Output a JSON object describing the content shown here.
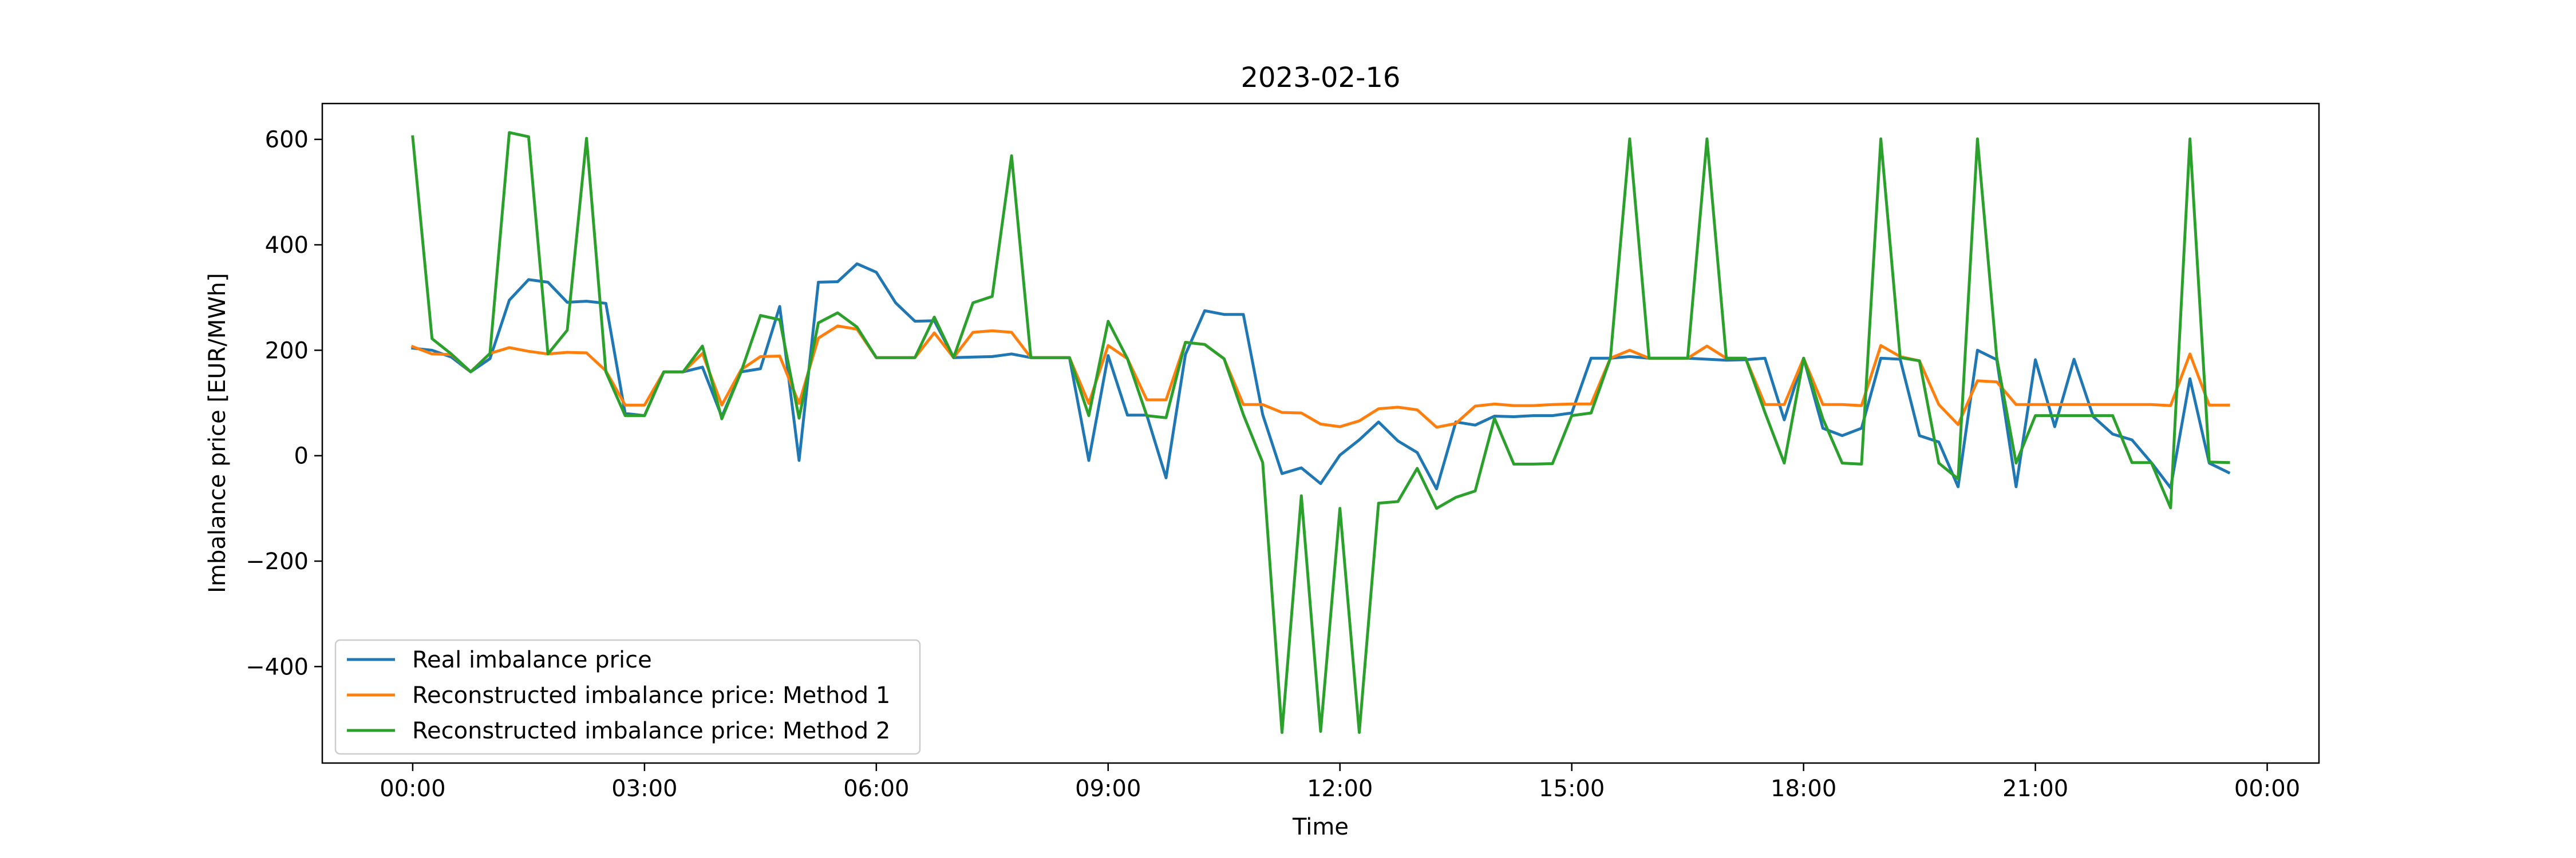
{
  "chart_data": {
    "type": "line",
    "title": "2023-02-16",
    "xlabel": "Time",
    "ylabel": "Imbalance price [EUR/MWh]",
    "x_start": "00:00",
    "x_step_minutes": 15,
    "xlim_hours": [
      -1.17,
      24.67
    ],
    "ylim": [
      -583,
      668
    ],
    "xticks": [
      {
        "hour": 0,
        "label": "00:00"
      },
      {
        "hour": 3,
        "label": "03:00"
      },
      {
        "hour": 6,
        "label": "06:00"
      },
      {
        "hour": 9,
        "label": "09:00"
      },
      {
        "hour": 12,
        "label": "12:00"
      },
      {
        "hour": 15,
        "label": "15:00"
      },
      {
        "hour": 18,
        "label": "18:00"
      },
      {
        "hour": 21,
        "label": "21:00"
      },
      {
        "hour": 24,
        "label": "00:00"
      }
    ],
    "yticks": [
      {
        "value": -400,
        "label": "−400"
      },
      {
        "value": -200,
        "label": "−200"
      },
      {
        "value": 0,
        "label": "0"
      },
      {
        "value": 200,
        "label": "200"
      },
      {
        "value": 400,
        "label": "400"
      },
      {
        "value": 600,
        "label": "600"
      }
    ],
    "grid": false,
    "legend_position": "lower-left",
    "series": [
      {
        "name": "Real imbalance price",
        "color": "#1f77b4",
        "values": [
          204,
          200,
          187,
          159,
          184,
          295,
          334,
          329,
          291,
          293,
          289,
          80,
          76,
          159,
          159,
          168,
          74,
          159,
          165,
          283,
          -9,
          329,
          330,
          364,
          348,
          290,
          255,
          256,
          186,
          187,
          188,
          193,
          186,
          186,
          186,
          -9,
          190,
          77,
          77,
          -42,
          192,
          275,
          268,
          268,
          78,
          -34,
          -23,
          -53,
          1,
          30,
          64,
          28,
          6,
          -63,
          64,
          58,
          75,
          74,
          76,
          76,
          81,
          185,
          185,
          188,
          185,
          185,
          185,
          183,
          181,
          182,
          185,
          68,
          185,
          52,
          38,
          52,
          185,
          183,
          38,
          26,
          -59,
          200,
          182,
          -59,
          182,
          55,
          183,
          74,
          41,
          30,
          -13,
          -61,
          146,
          -14,
          -32
        ]
      },
      {
        "name": "Reconstructed imbalance price: Method 1",
        "color": "#ff7f0e",
        "values": [
          207,
          193,
          192,
          159,
          194,
          205,
          198,
          193,
          196,
          195,
          161,
          96,
          96,
          159,
          159,
          194,
          96,
          163,
          188,
          189,
          99,
          223,
          246,
          240,
          186,
          186,
          186,
          233,
          186,
          234,
          237,
          234,
          186,
          186,
          186,
          99,
          209,
          184,
          106,
          106,
          215,
          211,
          184,
          97,
          97,
          82,
          81,
          60,
          55,
          66,
          89,
          92,
          87,
          54,
          61,
          94,
          98,
          95,
          95,
          97,
          98,
          98,
          185,
          200,
          185,
          185,
          185,
          208,
          185,
          185,
          97,
          97,
          185,
          97,
          97,
          95,
          209,
          188,
          180,
          97,
          59,
          142,
          140,
          97,
          97,
          97,
          97,
          97,
          97,
          97,
          97,
          95,
          193,
          96,
          96
        ]
      },
      {
        "name": "Reconstructed imbalance price: Method 2",
        "color": "#2ca02c",
        "values": [
          605,
          222,
          193,
          159,
          194,
          613,
          605,
          193,
          238,
          602,
          159,
          76,
          76,
          159,
          159,
          208,
          70,
          159,
          266,
          258,
          71,
          252,
          271,
          244,
          186,
          186,
          186,
          263,
          186,
          290,
          302,
          569,
          186,
          186,
          186,
          76,
          255,
          184,
          76,
          72,
          215,
          211,
          184,
          78,
          -13,
          -525,
          -76,
          -523,
          -100,
          -525,
          -90,
          -87,
          -24,
          -100,
          -79,
          -67,
          71,
          -16,
          -16,
          -15,
          76,
          81,
          185,
          601,
          185,
          185,
          185,
          601,
          185,
          185,
          82,
          -14,
          185,
          70,
          -14,
          -16,
          601,
          186,
          180,
          -14,
          -44,
          601,
          186,
          -14,
          76,
          76,
          76,
          76,
          76,
          -13,
          -13,
          -99,
          601,
          -12,
          -13
        ]
      }
    ]
  }
}
